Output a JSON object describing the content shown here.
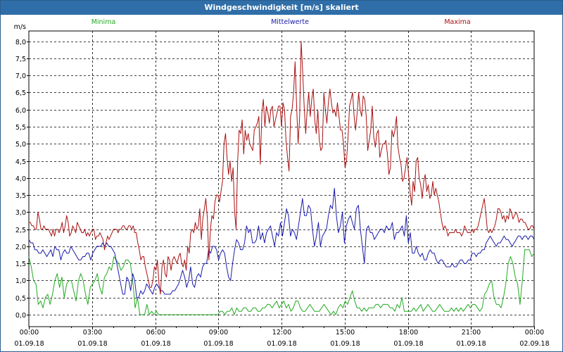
{
  "window": {
    "title": "Windgeschwindigkeit [m/s] skaliert"
  },
  "chart_data": {
    "type": "line",
    "ylabel": "m/s",
    "ylim": [
      -0.35,
      8.3
    ],
    "yticks": [
      "0,0",
      "0,5",
      "1,0",
      "1,5",
      "2,0",
      "2,5",
      "3,0",
      "3,5",
      "4,0",
      "4,5",
      "5,0",
      "5,5",
      "6,0",
      "6,5",
      "7,0",
      "7,5",
      "8,0"
    ],
    "xticks": [
      {
        "time": "00:00",
        "date": "01.09.18"
      },
      {
        "time": "03:00",
        "date": "01.09.18"
      },
      {
        "time": "06:00",
        "date": "01.09.18"
      },
      {
        "time": "09:00",
        "date": "01.09.18"
      },
      {
        "time": "12:00",
        "date": "01.09.18"
      },
      {
        "time": "15:00",
        "date": "01.09.18"
      },
      {
        "time": "18:00",
        "date": "01.09.18"
      },
      {
        "time": "21:00",
        "date": "01.09.18"
      },
      {
        "time": "00:00",
        "date": "02.09.18"
      }
    ],
    "xlim_hours": [
      0,
      24
    ],
    "grid": true,
    "series": [
      {
        "name": "Minima",
        "color": "#22aa22",
        "legend_position": "left",
        "values": [
          1.7,
          1.4,
          1.0,
          0.9,
          0.3,
          0.4,
          0.2,
          0.5,
          0.6,
          0.3,
          0.6,
          1.0,
          1.2,
          0.8,
          1.1,
          0.5,
          0.9,
          1.0,
          1.0,
          0.7,
          0.4,
          1.0,
          1.2,
          1.0,
          0.6,
          0.3,
          0.8,
          0.9,
          1.0,
          1.2,
          0.8,
          0.6,
          1.1,
          1.2,
          1.4,
          1.3,
          1.7,
          1.6,
          1.5,
          1.3,
          1.4,
          1.6,
          1.6,
          1.5,
          1.0,
          0.2,
          0.5,
          0.0,
          0.0,
          0.0,
          0.3,
          0.0,
          0.1,
          0.0,
          0.1,
          0.0,
          0.0,
          0.0,
          0.0,
          0.0,
          0.0,
          0.0,
          0.0,
          0.0,
          0.0,
          0.0,
          0.0,
          0.0,
          0.0,
          0.0,
          0.0,
          0.0,
          0.0,
          0.0,
          0.0,
          0.0,
          0.0,
          0.0,
          0.0,
          0.0,
          0.0,
          0.1,
          0.1,
          0.0,
          0.1,
          0.1,
          0.2,
          0.0,
          0.2,
          0.1,
          0.1,
          0.2,
          0.2,
          0.1,
          0.1,
          0.2,
          0.2,
          0.1,
          0.1,
          0.2,
          0.2,
          0.3,
          0.3,
          0.2,
          0.3,
          0.4,
          0.2,
          0.3,
          0.4,
          0.2,
          0.3,
          0.1,
          0.2,
          0.4,
          0.4,
          0.2,
          0.1,
          0.1,
          0.2,
          0.3,
          0.2,
          0.1,
          0.1,
          0.1,
          0.2,
          0.3,
          0.2,
          0.1,
          0.0,
          0.1,
          0.0,
          0.2,
          0.3,
          0.2,
          0.4,
          0.3,
          0.5,
          0.7,
          0.4,
          0.2,
          0.2,
          0.1,
          0.2,
          0.1,
          0.2,
          0.2,
          0.2,
          0.3,
          0.3,
          0.2,
          0.3,
          0.3,
          0.3,
          0.2,
          0.2,
          0.1,
          0.3,
          0.2,
          0.5,
          0.1,
          0.1,
          0.1,
          0.1,
          0.2,
          0.1,
          0.2,
          0.3,
          0.1,
          0.2,
          0.3,
          0.2,
          0.1,
          0.1,
          0.2,
          0.3,
          0.2,
          0.1,
          0.1,
          0.1,
          0.2,
          0.1,
          0.2,
          0.1,
          0.2,
          0.1,
          0.2,
          0.3,
          0.2,
          0.3,
          0.3,
          0.2,
          0.1,
          0.2,
          0.6,
          0.7,
          0.9,
          1.0,
          0.5,
          0.3,
          0.3,
          0.2,
          0.5,
          0.9,
          1.5,
          1.7,
          1.5,
          1.1,
          0.9,
          0.3,
          1.0,
          1.9,
          1.9,
          1.9,
          1.7,
          1.8
        ]
      },
      {
        "name": "Mittelwerte",
        "color": "#1a1aaa",
        "legend_position": "center",
        "values": [
          2.2,
          2.1,
          2.1,
          1.9,
          1.9,
          1.8,
          1.8,
          1.9,
          1.8,
          1.7,
          1.8,
          1.9,
          1.7,
          2.0,
          1.9,
          1.9,
          1.6,
          1.8,
          1.9,
          1.8,
          1.8,
          2.0,
          1.9,
          1.8,
          1.7,
          1.6,
          1.6,
          1.7,
          1.7,
          1.8,
          1.8,
          1.6,
          1.8,
          1.9,
          2.0,
          2.0,
          2.0,
          2.1,
          2.0,
          2.1,
          2.0,
          2.0,
          1.9,
          1.8,
          1.5,
          1.2,
          0.9,
          0.6,
          0.6,
          1.1,
          1.0,
          0.7,
          1.2,
          1.0,
          0.5,
          0.5,
          0.7,
          0.6,
          0.7,
          0.9,
          0.8,
          0.7,
          0.6,
          0.8,
          0.9,
          0.8,
          0.7,
          0.7,
          0.6,
          0.6,
          0.6,
          0.6,
          0.7,
          0.7,
          0.8,
          0.9,
          1.1,
          1.3,
          1.1,
          0.8,
          1.0,
          1.4,
          0.9,
          0.8,
          1.1,
          1.2,
          1.1,
          1.4,
          1.5,
          1.5,
          1.9,
          1.8,
          2.0,
          2.0,
          1.9,
          1.6,
          1.8,
          1.9,
          1.8,
          1.4,
          1.1,
          1.0,
          1.5,
          1.9,
          2.2,
          2.1,
          1.9,
          1.9,
          2.1,
          2.6,
          2.4,
          2.5,
          2.1,
          2.1,
          2.2,
          2.6,
          2.2,
          2.4,
          2.1,
          2.4,
          2.5,
          2.6,
          2.3,
          2.0,
          2.4,
          2.3,
          2.7,
          2.3,
          2.7,
          3.1,
          2.9,
          2.3,
          2.5,
          2.4,
          2.2,
          2.6,
          3.0,
          3.4,
          2.9,
          2.9,
          3.2,
          3.1,
          2.5,
          2.0,
          2.3,
          2.7,
          2.0,
          2.3,
          2.4,
          2.5,
          2.9,
          3.2,
          3.1,
          3.7,
          2.9,
          2.4,
          2.6,
          3.0,
          2.1,
          2.6,
          2.8,
          2.9,
          2.7,
          2.5,
          3.1,
          3.2,
          2.5,
          2.0,
          1.5,
          2.5,
          2.6,
          2.4,
          2.4,
          2.2,
          2.3,
          2.4,
          2.5,
          2.5,
          2.4,
          2.6,
          2.5,
          2.5,
          2.7,
          2.2,
          2.4,
          2.4,
          2.5,
          2.6,
          2.3,
          2.9,
          2.1,
          2.4,
          1.8,
          1.8,
          2.0,
          1.8,
          1.7,
          1.8,
          1.6,
          1.6,
          1.8,
          1.9,
          1.8,
          1.8,
          1.6,
          1.5,
          1.6,
          1.6,
          1.5,
          1.4,
          1.4,
          1.4,
          1.5,
          1.4,
          1.4,
          1.5,
          1.6,
          1.6,
          1.5,
          1.5,
          1.6,
          1.6,
          1.8,
          1.8,
          1.7,
          1.8,
          1.8,
          1.9,
          1.9,
          2.1,
          2.2,
          2.3,
          2.2,
          2.1,
          2.0,
          2.1,
          2.1,
          2.2,
          2.3,
          2.2,
          2.2,
          2.1,
          2.0,
          2.1,
          2.2,
          2.3,
          2.3,
          2.2,
          2.3,
          2.3,
          2.2,
          2.3,
          2.3,
          2.2
        ]
      },
      {
        "name": "Maxima",
        "color": "#aa1111",
        "legend_position": "right",
        "values": [
          2.7,
          2.7,
          2.6,
          2.6,
          2.5,
          2.5,
          3.0,
          2.8,
          2.5,
          2.5,
          2.6,
          2.5,
          2.5,
          2.5,
          2.4,
          2.3,
          2.5,
          2.3,
          2.5,
          2.5,
          2.4,
          2.5,
          2.7,
          2.4,
          2.6,
          2.9,
          2.7,
          2.3,
          2.4,
          2.6,
          2.5,
          2.4,
          2.7,
          2.6,
          2.5,
          2.4,
          2.4,
          2.5,
          2.3,
          2.4,
          2.3,
          2.4,
          2.5,
          2.5,
          2.2,
          2.3,
          2.3,
          2.4,
          2.3,
          2.2,
          1.9,
          2.1,
          2.3,
          2.2,
          2.3,
          2.4,
          2.5,
          2.5,
          2.5,
          2.4,
          2.5,
          2.5,
          2.6,
          2.6,
          2.5,
          2.5,
          2.6,
          2.6,
          2.5,
          2.6,
          2.4,
          2.4,
          2.1,
          1.9,
          1.6,
          1.7,
          1.7,
          1.4,
          1.2,
          1.0,
          0.8,
          0.8,
          1.0,
          1.4,
          1.3,
          1.6,
          0.9,
          0.6,
          1.4,
          1.6,
          1.2,
          1.1,
          1.7,
          1.6,
          1.3,
          1.6,
          1.7,
          1.6,
          1.5,
          1.7,
          1.8,
          1.5,
          1.4,
          1.6,
          1.3,
          2.0,
          1.8,
          2.4,
          2.5,
          2.4,
          2.7,
          2.5,
          2.6,
          3.1,
          2.2,
          2.8,
          3.1,
          3.4,
          2.8,
          1.6,
          2.5,
          2.9,
          2.8,
          3.3,
          3.5,
          3.5,
          3.3,
          3.6,
          3.9,
          5.0,
          5.3,
          4.6,
          4.1,
          4.5,
          3.9,
          4.3,
          3.0,
          2.5,
          4.5,
          5.4,
          5.3,
          5.7,
          4.7,
          5.4,
          5.1,
          5.3,
          5.0,
          4.9,
          4.8,
          5.4,
          5.5,
          5.6,
          5.8,
          4.4,
          5.9,
          6.3,
          5.5,
          6.1,
          5.9,
          5.6,
          6.0,
          6.1,
          5.5,
          5.7,
          5.9,
          6.1,
          6.1,
          5.5,
          6.2,
          6.0,
          5.1,
          4.6,
          4.2,
          5.8,
          6.0,
          6.5,
          7.4,
          6.1,
          5.0,
          5.8,
          8.0,
          7.1,
          6.1,
          5.3,
          6.0,
          6.5,
          5.8,
          6.3,
          6.6,
          5.7,
          5.3,
          6.0,
          5.1,
          4.8,
          4.9,
          6.5,
          6.0,
          5.6,
          6.2,
          6.6,
          6.2,
          5.9,
          6.0,
          5.8,
          6.2,
          5.8,
          5.4,
          5.4,
          5.0,
          4.3,
          4.5,
          5.2,
          6.1,
          6.3,
          6.5,
          5.8,
          5.4,
          5.9,
          6.5,
          6.0,
          5.8,
          6.4,
          6.3,
          5.8,
          4.8,
          5.1,
          5.4,
          6.1,
          5.2,
          4.9,
          5.3,
          5.4,
          4.6,
          4.8,
          5.0,
          5.0,
          5.1,
          4.7,
          4.1,
          4.3,
          5.4,
          5.2,
          5.4,
          5.8,
          4.9,
          4.6,
          4.4,
          3.9,
          4.0,
          4.3,
          4.6,
          4.1,
          3.6,
          3.2,
          3.9,
          3.6,
          4.5,
          4.6,
          4.0,
          3.8,
          3.4,
          3.9,
          4.1,
          3.6,
          3.8,
          3.4,
          3.5,
          3.9,
          3.5,
          3.7,
          3.5,
          3.3,
          3.0,
          2.7,
          2.5,
          2.6,
          2.5,
          2.3,
          2.4,
          2.4,
          2.4,
          2.4,
          2.5,
          2.4,
          2.4,
          2.4,
          2.3,
          2.4,
          2.6,
          2.5,
          2.4,
          2.4,
          2.4,
          2.5,
          2.4,
          2.5,
          2.5,
          2.6,
          2.8,
          3.0,
          3.2,
          3.4,
          3.0,
          2.5,
          2.4,
          2.5,
          2.4,
          2.5,
          2.6,
          2.8,
          3.1,
          3.1,
          3.0,
          2.8,
          2.9,
          2.7,
          2.9,
          2.8,
          3.1,
          3.0,
          2.8,
          2.9,
          3.0,
          2.9,
          2.7,
          2.8,
          2.8,
          2.7,
          2.7,
          2.6,
          2.5,
          2.5,
          2.6,
          2.6,
          2.5
        ]
      }
    ]
  }
}
